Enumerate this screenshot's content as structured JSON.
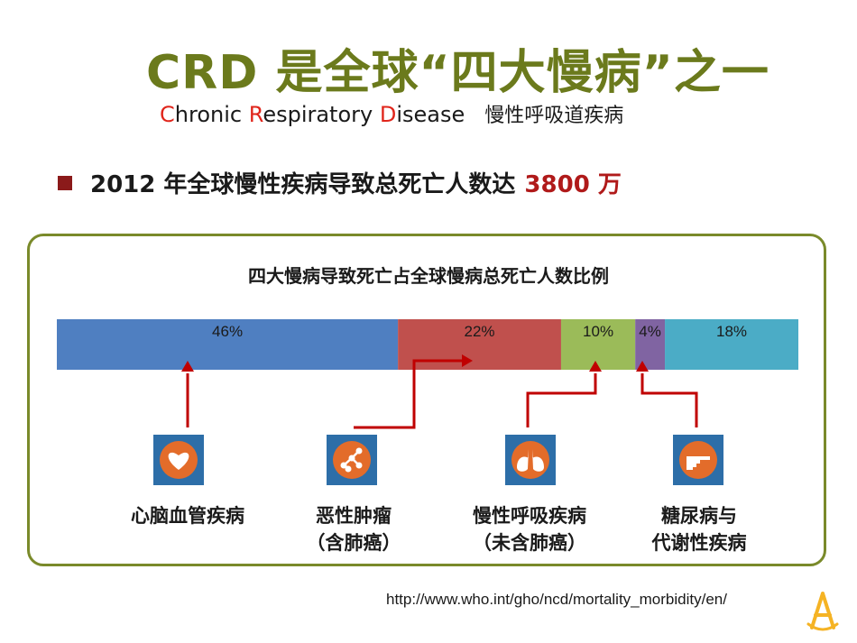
{
  "header": {
    "title": "CRD 是全球“四大慢病”之一",
    "subtitle": {
      "c": "C",
      "hronic": "hronic ",
      "r": "R",
      "espiratory": "espiratory ",
      "d": "D",
      "isease": "isease",
      "cn": "慢性呼吸道疾病"
    }
  },
  "bullet": {
    "text": "2012 年全球慢性疾病导致总死亡人数达",
    "highlight": "3800 万"
  },
  "chart_data": {
    "type": "bar",
    "title": "四大慢病导致死亡占全球慢病总死亡人数比例",
    "orientation": "horizontal-stacked",
    "segments": [
      {
        "value": 46,
        "label": "46%",
        "color": "#4f7fc1"
      },
      {
        "value": 22,
        "label": "22%",
        "color": "#c0504d"
      },
      {
        "value": 10,
        "label": "10%",
        "color": "#9bbb59"
      },
      {
        "value": 4,
        "label": "4%",
        "color": "#8064a2"
      },
      {
        "value": 18,
        "label": "18%",
        "color": "#4bacc6"
      }
    ],
    "categories": [
      {
        "line1": "心脑血管疾病",
        "line2": "",
        "icon": "heart-icon"
      },
      {
        "line1": "恶性肿瘤",
        "line2": "（含肺癌）",
        "icon": "molecule-icon"
      },
      {
        "line1": "慢性呼吸疾病",
        "line2": "（未含肺癌）",
        "icon": "lungs-icon"
      },
      {
        "line1": "糖尿病与",
        "line2": "代谢性疾病",
        "icon": "hand-point-icon"
      }
    ]
  },
  "colors": {
    "arrow": "#c00000",
    "icon_bg": "#2d6ea8",
    "icon_circle": "#e36c2a",
    "title": "#6b7a1c"
  },
  "source_url": "http://www.who.int/gho/ncd/mortality_morbidity/en/"
}
